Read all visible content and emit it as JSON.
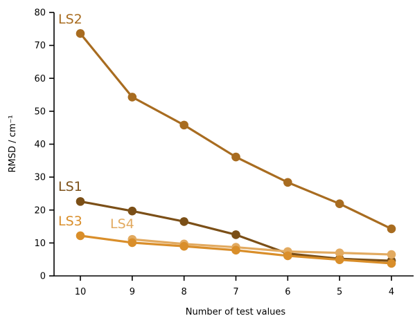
{
  "chart_data": {
    "type": "line",
    "title": "",
    "xlabel": "Number of test values",
    "ylabel": "RMSD / cm⁻¹",
    "x": [
      10,
      9,
      8,
      7,
      6,
      5,
      4
    ],
    "x_reversed": true,
    "ylim": [
      0,
      80
    ],
    "yticks": [
      0,
      10,
      20,
      30,
      40,
      50,
      60,
      70,
      80
    ],
    "grid": false,
    "legend": "inline labels",
    "series": [
      {
        "name": "LS1",
        "color": "#7b4f17",
        "values": [
          22.6,
          19.7,
          16.5,
          12.5,
          6.8,
          5.2,
          4.6
        ]
      },
      {
        "name": "LS2",
        "color": "#a86c20",
        "values": [
          73.6,
          54.3,
          45.8,
          36.1,
          28.4,
          21.9,
          14.3
        ]
      },
      {
        "name": "LS3",
        "color": "#d98e2a",
        "values": [
          12.2,
          10.1,
          9.0,
          7.8,
          6.1,
          4.9,
          3.8
        ]
      },
      {
        "name": "LS4",
        "color": "#e2aa60",
        "values": [
          null,
          11.1,
          9.7,
          8.7,
          7.4,
          7.0,
          6.5
        ]
      }
    ]
  }
}
